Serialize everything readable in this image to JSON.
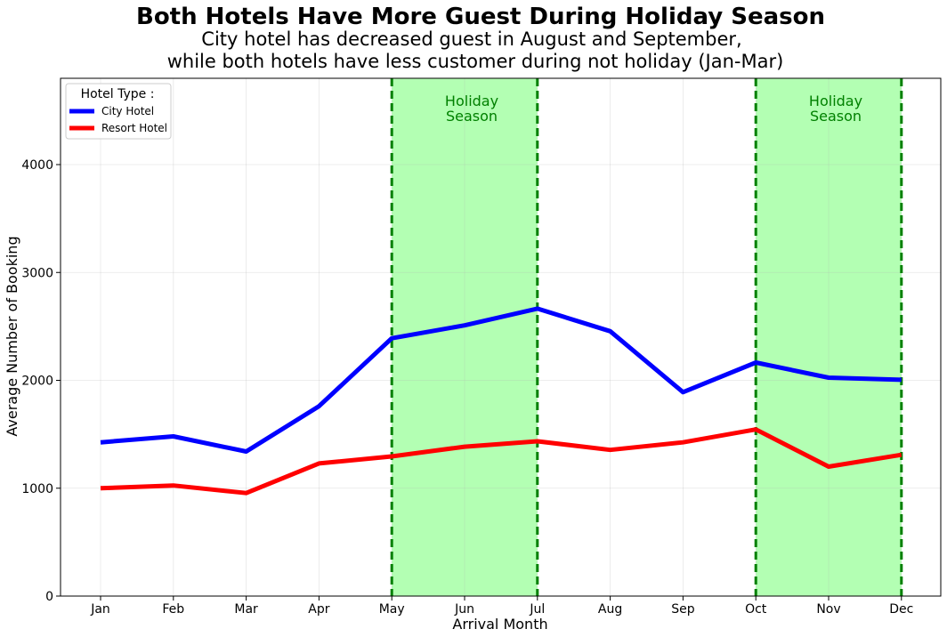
{
  "chart_data": {
    "type": "line",
    "title": "Both Hotels Have More Guest During Holiday Season",
    "subtitle_lines": [
      "City hotel has decreased guest in August and September,",
      "while both hotels have less customer during not holiday (Jan-Mar)"
    ],
    "xlabel": "Arrival Month",
    "ylabel": "Average Number of Booking",
    "categories": [
      "Jan",
      "Feb",
      "Mar",
      "Apr",
      "May",
      "Jun",
      "Jul",
      "Aug",
      "Sep",
      "Oct",
      "Nov",
      "Dec"
    ],
    "ylim": [
      0,
      4800
    ],
    "yticks": [
      0,
      1000,
      2000,
      3000,
      4000
    ],
    "grid": true,
    "legend": {
      "title": "Hotel Type :",
      "position": "top-left"
    },
    "series": [
      {
        "name": "City Hotel",
        "color": "#0000ff",
        "values": [
          1425,
          1480,
          1340,
          1760,
          2390,
          2510,
          2665,
          2455,
          1890,
          2165,
          2025,
          2005
        ]
      },
      {
        "name": "Resort Hotel",
        "color": "#ff0000",
        "values": [
          1000,
          1025,
          955,
          1230,
          1295,
          1385,
          1435,
          1355,
          1425,
          1545,
          1200,
          1310
        ]
      }
    ],
    "highlight_bands": [
      {
        "start": "May",
        "end": "Jul",
        "label_lines": [
          "Holiday",
          "Season"
        ],
        "fill": "#b3ffb3",
        "edge": "#008000"
      },
      {
        "start": "Oct",
        "end": "Dec",
        "label_lines": [
          "Holiday",
          "Season"
        ],
        "fill": "#b3ffb3",
        "edge": "#008000"
      }
    ]
  }
}
